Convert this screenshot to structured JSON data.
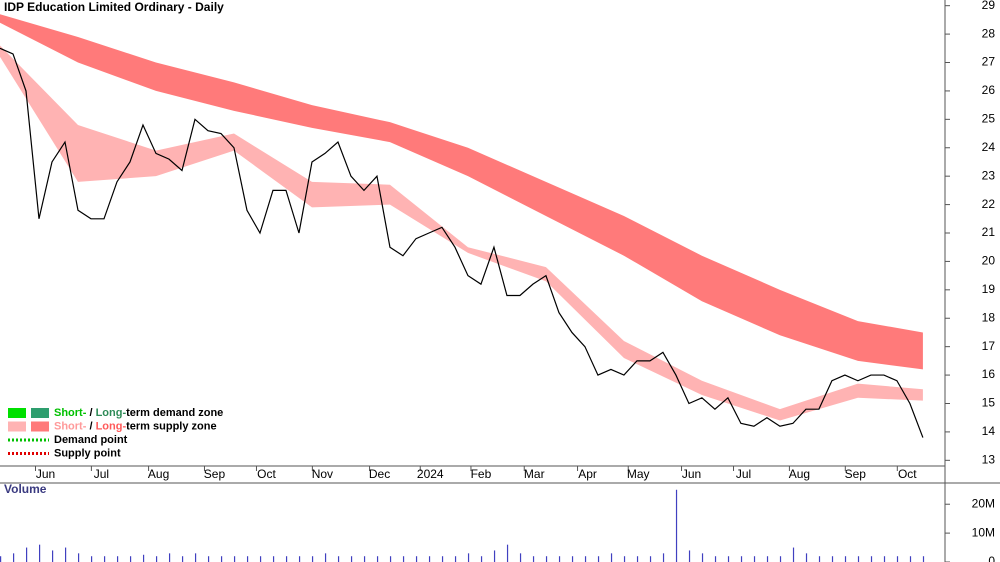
{
  "chart_data": [
    {
      "type": "line",
      "title": "IDP Education Limited Ordinary - Daily",
      "x": [
        0,
        1,
        2,
        3,
        4,
        5,
        6,
        7,
        8,
        9,
        10,
        11,
        12,
        13,
        14,
        15,
        16,
        17,
        18,
        19,
        20,
        21,
        22,
        23,
        24,
        25,
        26,
        27,
        28,
        29,
        30,
        31,
        32,
        33,
        34,
        35,
        36,
        37,
        38,
        39,
        40,
        41,
        42,
        43,
        44,
        45,
        46,
        47,
        48,
        49,
        50,
        51,
        52,
        53,
        54,
        55,
        56,
        57,
        58,
        59,
        60,
        61,
        62,
        63,
        64,
        65,
        66,
        67,
        68,
        69,
        70,
        71
      ],
      "series": [
        {
          "color": "#000000",
          "values": [
            27.5,
            27.3,
            26,
            21.5,
            23.5,
            24.2,
            21.8,
            21.5,
            21.5,
            22.8,
            23.5,
            24.8,
            23.8,
            23.6,
            23.2,
            25,
            24.6,
            24.5,
            24,
            21.8,
            21,
            22.5,
            22.5,
            21,
            23.5,
            23.8,
            24.2,
            23,
            22.5,
            23,
            20.5,
            20.2,
            20.8,
            21,
            21.2,
            20.5,
            19.5,
            19.2,
            20.5,
            18.8,
            18.8,
            19.2,
            19.5,
            18.2,
            17.5,
            17,
            16,
            16.2,
            16,
            16.5,
            16.5,
            16.8,
            16,
            15,
            15.2,
            14.8,
            15.2,
            14.3,
            14.2,
            14.5,
            14.2,
            14.3,
            14.8,
            14.8,
            15.8,
            16,
            15.8,
            16,
            16,
            15.8,
            15,
            13.8
          ]
        }
      ],
      "bands": [
        {
          "color": "#ff7a7a",
          "x": [
            0,
            6,
            12,
            18,
            24,
            30,
            36,
            42,
            48,
            54,
            60,
            66,
            71
          ],
          "upper": [
            28.7,
            27.9,
            27.0,
            26.3,
            25.5,
            24.9,
            24.0,
            22.8,
            21.6,
            20.2,
            19.0,
            17.9,
            17.5
          ],
          "lower": [
            28.4,
            27.0,
            26.0,
            25.3,
            24.7,
            24.2,
            23.0,
            21.6,
            20.2,
            18.6,
            17.4,
            16.5,
            16.2
          ]
        },
        {
          "color": "#ffb3b3",
          "x": [
            0,
            6,
            12,
            18,
            24,
            30,
            36,
            42,
            48,
            54,
            60,
            66,
            71
          ],
          "upper": [
            27.6,
            24.8,
            23.9,
            24.5,
            22.8,
            22.7,
            20.5,
            19.8,
            17.2,
            15.8,
            14.8,
            15.7,
            15.5
          ],
          "lower": [
            27.2,
            22.8,
            23.0,
            23.9,
            21.9,
            22.0,
            20.3,
            19.3,
            16.6,
            15.3,
            14.4,
            15.2,
            15.1
          ]
        }
      ],
      "xlim": [
        0,
        72.7
      ],
      "xticks": [
        {
          "value": 3.5,
          "label": "Jun"
        },
        {
          "value": 7.8,
          "label": "Jul"
        },
        {
          "value": 12.2,
          "label": "Aug"
        },
        {
          "value": 16.5,
          "label": "Sep"
        },
        {
          "value": 20.5,
          "label": "Oct"
        },
        {
          "value": 24.8,
          "label": "Nov"
        },
        {
          "value": 29.2,
          "label": "Dec"
        },
        {
          "value": 33.1,
          "label": "2024"
        },
        {
          "value": 37,
          "label": "Feb"
        },
        {
          "value": 41.1,
          "label": "Mar"
        },
        {
          "value": 45.2,
          "label": "Apr"
        },
        {
          "value": 49.1,
          "label": "May"
        },
        {
          "value": 53.2,
          "label": "Jun"
        },
        {
          "value": 57.2,
          "label": "Jul"
        },
        {
          "value": 61.5,
          "label": "Aug"
        },
        {
          "value": 65.8,
          "label": "Sep"
        },
        {
          "value": 69.8,
          "label": "Oct"
        }
      ],
      "ylim": [
        12.8,
        29.2
      ],
      "yticks": [
        13,
        14,
        15,
        16,
        17,
        18,
        19,
        20,
        21,
        22,
        23,
        24,
        25,
        26,
        27,
        28,
        29
      ],
      "legend": [
        {
          "swatches": [
            "#00e000",
            "#2e9e6e"
          ],
          "parts": [
            {
              "text": "Short-",
              "color": "#00c000"
            },
            {
              "text": " / ",
              "color": "#000000"
            },
            {
              "text": "Long-",
              "color": "#2e8b57"
            },
            {
              "text": "term demand zone",
              "color": "#000000"
            }
          ]
        },
        {
          "swatches": [
            "#ffb3b3",
            "#ff7a7a"
          ],
          "parts": [
            {
              "text": "Short-",
              "color": "#ff9a9a"
            },
            {
              "text": " / ",
              "color": "#000000"
            },
            {
              "text": "Long-",
              "color": "#ff5a5a"
            },
            {
              "text": "term supply zone",
              "color": "#000000"
            }
          ]
        },
        {
          "dotted": "#00c000",
          "parts": [
            {
              "text": "Demand point",
              "color": "#000000"
            }
          ]
        },
        {
          "dotted": "#e00000",
          "parts": [
            {
              "text": "Supply point",
              "color": "#000000"
            }
          ]
        }
      ]
    },
    {
      "type": "bar",
      "title": "Volume",
      "color": "#4040c0",
      "x": [
        0,
        1,
        2,
        3,
        4,
        5,
        6,
        7,
        8,
        9,
        10,
        11,
        12,
        13,
        14,
        15,
        16,
        17,
        18,
        19,
        20,
        21,
        22,
        23,
        24,
        25,
        26,
        27,
        28,
        29,
        30,
        31,
        32,
        33,
        34,
        35,
        36,
        37,
        38,
        39,
        40,
        41,
        42,
        43,
        44,
        45,
        46,
        47,
        48,
        49,
        50,
        51,
        52,
        53,
        54,
        55,
        56,
        57,
        58,
        59,
        60,
        61,
        62,
        63,
        64,
        65,
        66,
        67,
        68,
        69,
        70,
        71
      ],
      "values": [
        2000000,
        3000000,
        5000000,
        6000000,
        4000000,
        5000000,
        3000000,
        2000000,
        2000000,
        2000000,
        2000000,
        2500000,
        2000000,
        3000000,
        2000000,
        3000000,
        2000000,
        2000000,
        2000000,
        2000000,
        2000000,
        2000000,
        2000000,
        2000000,
        2000000,
        3000000,
        2000000,
        2000000,
        2000000,
        2000000,
        2000000,
        2000000,
        2000000,
        2000000,
        2000000,
        2000000,
        3000000,
        2000000,
        4000000,
        6000000,
        3000000,
        2000000,
        2000000,
        2000000,
        2000000,
        2000000,
        2000000,
        3000000,
        2000000,
        2000000,
        2000000,
        3000000,
        25000000,
        4000000,
        3000000,
        2000000,
        2000000,
        2000000,
        2000000,
        2000000,
        2000000,
        5000000,
        3000000,
        2000000,
        2000000,
        2000000,
        2000000,
        2000000,
        2000000,
        2000000,
        2000000,
        2000000
      ],
      "xlim": [
        0,
        72.7
      ],
      "ylim": [
        0,
        27000000
      ],
      "yticks": [
        {
          "value": 0,
          "label": "0"
        },
        {
          "value": 10000000,
          "label": "10M"
        },
        {
          "value": 20000000,
          "label": "20M"
        }
      ]
    }
  ]
}
